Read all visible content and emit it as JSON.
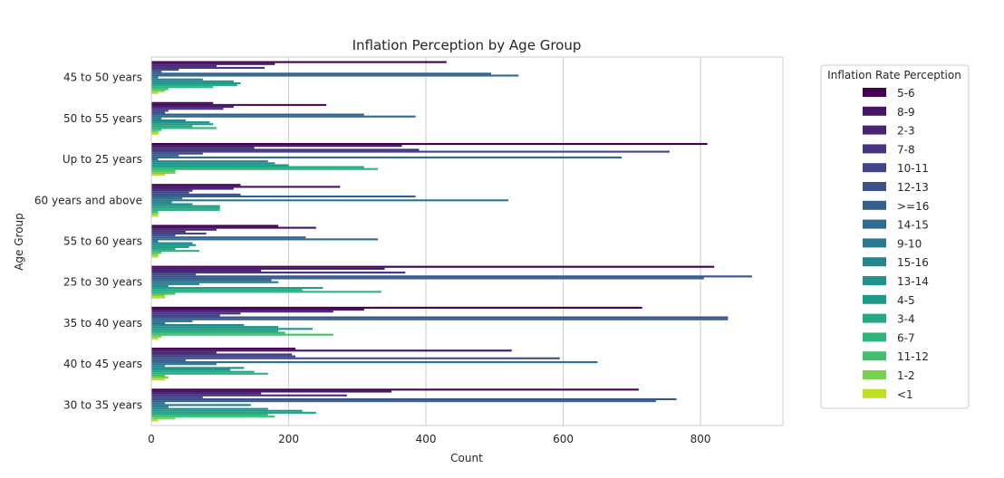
{
  "chart_data": {
    "type": "bar",
    "orientation": "horizontal",
    "title": "Inflation Perception by Age Group",
    "xlabel": "Count",
    "ylabel": "Age Group",
    "xlim": [
      0,
      920
    ],
    "xticks": [
      0,
      200,
      400,
      600,
      800
    ],
    "grid": "vertical",
    "categories": [
      "45 to 50 years",
      "50 to 55 years",
      "Up to 25 years",
      "60 years and above",
      "55 to 60 years",
      "25 to 30 years",
      "35 to 40 years",
      "40 to 45 years",
      "30 to 35 years"
    ],
    "legend": {
      "title": "Inflation Rate Perception",
      "placement": "outside-right"
    },
    "series": [
      {
        "name": "5-6",
        "color": "#440154",
        "values": [
          430,
          90,
          810,
          130,
          185,
          820,
          715,
          210,
          710
        ]
      },
      {
        "name": "8-9",
        "color": "#471365",
        "values": [
          180,
          255,
          365,
          275,
          240,
          340,
          310,
          525,
          350
        ]
      },
      {
        "name": "2-3",
        "color": "#482475",
        "values": [
          95,
          120,
          150,
          120,
          95,
          160,
          265,
          95,
          160
        ]
      },
      {
        "name": "7-8",
        "color": "#463480",
        "values": [
          165,
          105,
          390,
          60,
          50,
          370,
          130,
          205,
          285
        ]
      },
      {
        "name": "10-11",
        "color": "#414487",
        "values": [
          40,
          25,
          755,
          55,
          80,
          65,
          100,
          210,
          75
        ]
      },
      {
        "name": "12-13",
        "color": "#3b528b",
        "values": [
          15,
          20,
          75,
          130,
          35,
          875,
          840,
          595,
          765
        ]
      },
      {
        "name": ">=16",
        "color": "#355f8d",
        "values": [
          495,
          310,
          40,
          385,
          225,
          805,
          840,
          50,
          735
        ]
      },
      {
        "name": "14-15",
        "color": "#2f6c8e",
        "values": [
          535,
          385,
          685,
          45,
          330,
          175,
          60,
          650,
          20
        ]
      },
      {
        "name": "9-10",
        "color": "#2a788e",
        "values": [
          10,
          15,
          10,
          520,
          10,
          185,
          20,
          95,
          145
        ]
      },
      {
        "name": "15-16",
        "color": "#25848e",
        "values": [
          75,
          50,
          170,
          30,
          60,
          70,
          135,
          20,
          25
        ]
      },
      {
        "name": "13-14",
        "color": "#21918c",
        "values": [
          120,
          85,
          180,
          60,
          65,
          25,
          185,
          135,
          170
        ]
      },
      {
        "name": "4-5",
        "color": "#1e9c89",
        "values": [
          130,
          90,
          200,
          100,
          55,
          250,
          235,
          115,
          220
        ]
      },
      {
        "name": "3-4",
        "color": "#22a884",
        "values": [
          125,
          60,
          310,
          100,
          35,
          220,
          185,
          150,
          240
        ]
      },
      {
        "name": "6-7",
        "color": "#2fb47c",
        "values": [
          90,
          95,
          330,
          100,
          70,
          335,
          195,
          170,
          170
        ]
      },
      {
        "name": "11-12",
        "color": "#44bf70",
        "values": [
          25,
          15,
          35,
          10,
          15,
          35,
          265,
          20,
          180
        ]
      },
      {
        "name": "1-2",
        "color": "#7ad151",
        "values": [
          20,
          10,
          35,
          10,
          10,
          20,
          15,
          25,
          35
        ]
      },
      {
        "name": "<1",
        "color": "#bddf26",
        "values": [
          10,
          10,
          20,
          10,
          10,
          20,
          10,
          20,
          10
        ]
      }
    ]
  }
}
